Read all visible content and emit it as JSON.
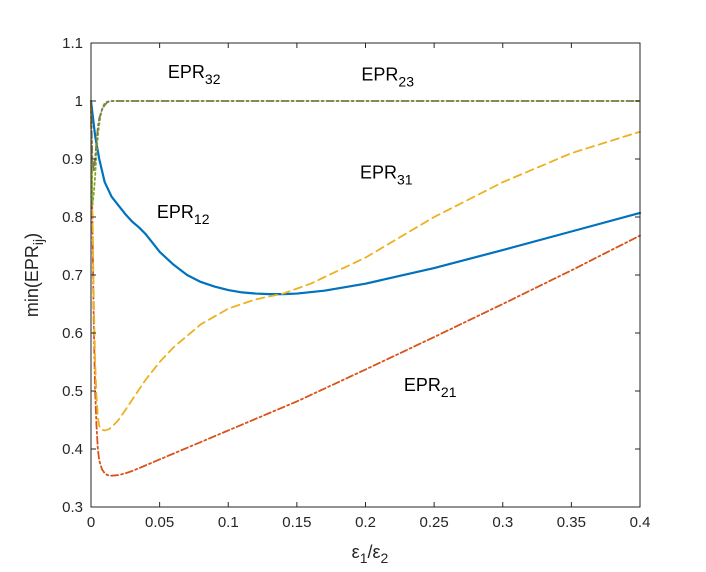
{
  "chart_data": {
    "type": "line",
    "xlabel": {
      "base": "ε",
      "sub1": "1",
      "slash": "/",
      "base2": "ε",
      "sub2": "2"
    },
    "ylabel": {
      "prefix": "min(EPR",
      "sub": "ij",
      "suffix": ")"
    },
    "xlim": [
      0,
      0.4
    ],
    "ylim": [
      0.3,
      1.1
    ],
    "xticks": [
      0,
      0.05,
      0.1,
      0.15,
      0.2,
      0.25,
      0.3,
      0.35,
      0.4
    ],
    "xtick_labels": [
      "0",
      "0.05",
      "0.1",
      "0.15",
      "0.2",
      "0.25",
      "0.3",
      "0.35",
      "0.4"
    ],
    "yticks": [
      0.3,
      0.4,
      0.5,
      0.6,
      0.7,
      0.8,
      0.9,
      1.0,
      1.1
    ],
    "ytick_labels": [
      "0.3",
      "0.4",
      "0.5",
      "0.6",
      "0.7",
      "0.8",
      "0.9",
      "1",
      "1.1"
    ],
    "grid": false,
    "legend": "none",
    "series": [
      {
        "id": "s12",
        "color": "#0072BD",
        "dash": "solid",
        "x": [
          0,
          0.003,
          0.006,
          0.01,
          0.015,
          0.02,
          0.025,
          0.03,
          0.035,
          0.04,
          0.045,
          0.05,
          0.06,
          0.07,
          0.08,
          0.09,
          0.1,
          0.11,
          0.12,
          0.13,
          0.14,
          0.15,
          0.17,
          0.2,
          0.25,
          0.3,
          0.35,
          0.4
        ],
        "y": [
          1.0,
          0.94,
          0.9,
          0.86,
          0.835,
          0.82,
          0.805,
          0.792,
          0.782,
          0.77,
          0.755,
          0.74,
          0.718,
          0.7,
          0.688,
          0.68,
          0.674,
          0.67,
          0.668,
          0.667,
          0.667,
          0.668,
          0.673,
          0.685,
          0.712,
          0.743,
          0.775,
          0.807
        ]
      },
      {
        "id": "s21",
        "color": "#D95319",
        "dash": "dashdot",
        "x": [
          0,
          0.001,
          0.002,
          0.003,
          0.004,
          0.005,
          0.006,
          0.008,
          0.01,
          0.012,
          0.015,
          0.02,
          0.025,
          0.03,
          0.04,
          0.05,
          0.06,
          0.08,
          0.1,
          0.12,
          0.15,
          0.2,
          0.25,
          0.3,
          0.35,
          0.4
        ],
        "y": [
          0.99,
          0.8,
          0.62,
          0.5,
          0.44,
          0.4,
          0.38,
          0.365,
          0.358,
          0.355,
          0.354,
          0.355,
          0.358,
          0.362,
          0.372,
          0.382,
          0.392,
          0.412,
          0.432,
          0.452,
          0.482,
          0.537,
          0.593,
          0.65,
          0.708,
          0.768
        ]
      },
      {
        "id": "s31",
        "color": "#EDB120",
        "dash": "dashed",
        "x": [
          0,
          0.001,
          0.002,
          0.003,
          0.004,
          0.005,
          0.006,
          0.008,
          0.01,
          0.013,
          0.016,
          0.02,
          0.025,
          0.03,
          0.04,
          0.05,
          0.06,
          0.08,
          0.1,
          0.12,
          0.14,
          0.16,
          0.2,
          0.25,
          0.3,
          0.35,
          0.4
        ],
        "y": [
          0.99,
          0.82,
          0.66,
          0.55,
          0.49,
          0.455,
          0.44,
          0.433,
          0.432,
          0.434,
          0.44,
          0.45,
          0.467,
          0.485,
          0.52,
          0.55,
          0.575,
          0.615,
          0.642,
          0.658,
          0.668,
          0.685,
          0.73,
          0.8,
          0.86,
          0.91,
          0.947
        ]
      },
      {
        "id": "s32",
        "color": "#77AC30",
        "dash": "dotted",
        "x": [
          0,
          0.001,
          0.002,
          0.003,
          0.004,
          0.005,
          0.006,
          0.007,
          0.008,
          0.009,
          0.01,
          0.012,
          0.015,
          0.02,
          0.1,
          0.2,
          0.3,
          0.4
        ],
        "y": [
          1.0,
          0.82,
          0.84,
          0.87,
          0.91,
          0.94,
          0.96,
          0.975,
          0.985,
          0.992,
          0.996,
          0.999,
          1.0,
          1.0,
          1.0,
          1.0,
          1.0,
          1.0
        ]
      },
      {
        "id": "s23",
        "color": "#7E7E4A",
        "dash": "dashdot",
        "x": [
          0,
          0.001,
          0.002,
          0.003,
          0.004,
          0.005,
          0.006,
          0.008,
          0.01,
          0.012,
          0.015,
          0.02,
          0.1,
          0.2,
          0.3,
          0.4
        ],
        "y": [
          1.0,
          0.9,
          0.88,
          0.9,
          0.93,
          0.955,
          0.97,
          0.985,
          0.993,
          0.998,
          1.0,
          1.0,
          1.0,
          1.0,
          1.0,
          1.0
        ]
      }
    ],
    "annotations": [
      {
        "id": "a32",
        "base": "EPR",
        "sub": "32",
        "x": 0.056,
        "y": 1.04
      },
      {
        "id": "a23",
        "base": "EPR",
        "sub": "23",
        "x": 0.197,
        "y": 1.035
      },
      {
        "id": "a31",
        "base": "EPR",
        "sub": "31",
        "x": 0.196,
        "y": 0.866
      },
      {
        "id": "a12",
        "base": "EPR",
        "sub": "12",
        "x": 0.048,
        "y": 0.798
      },
      {
        "id": "a21",
        "base": "EPR",
        "sub": "21",
        "x": 0.228,
        "y": 0.5
      }
    ]
  }
}
